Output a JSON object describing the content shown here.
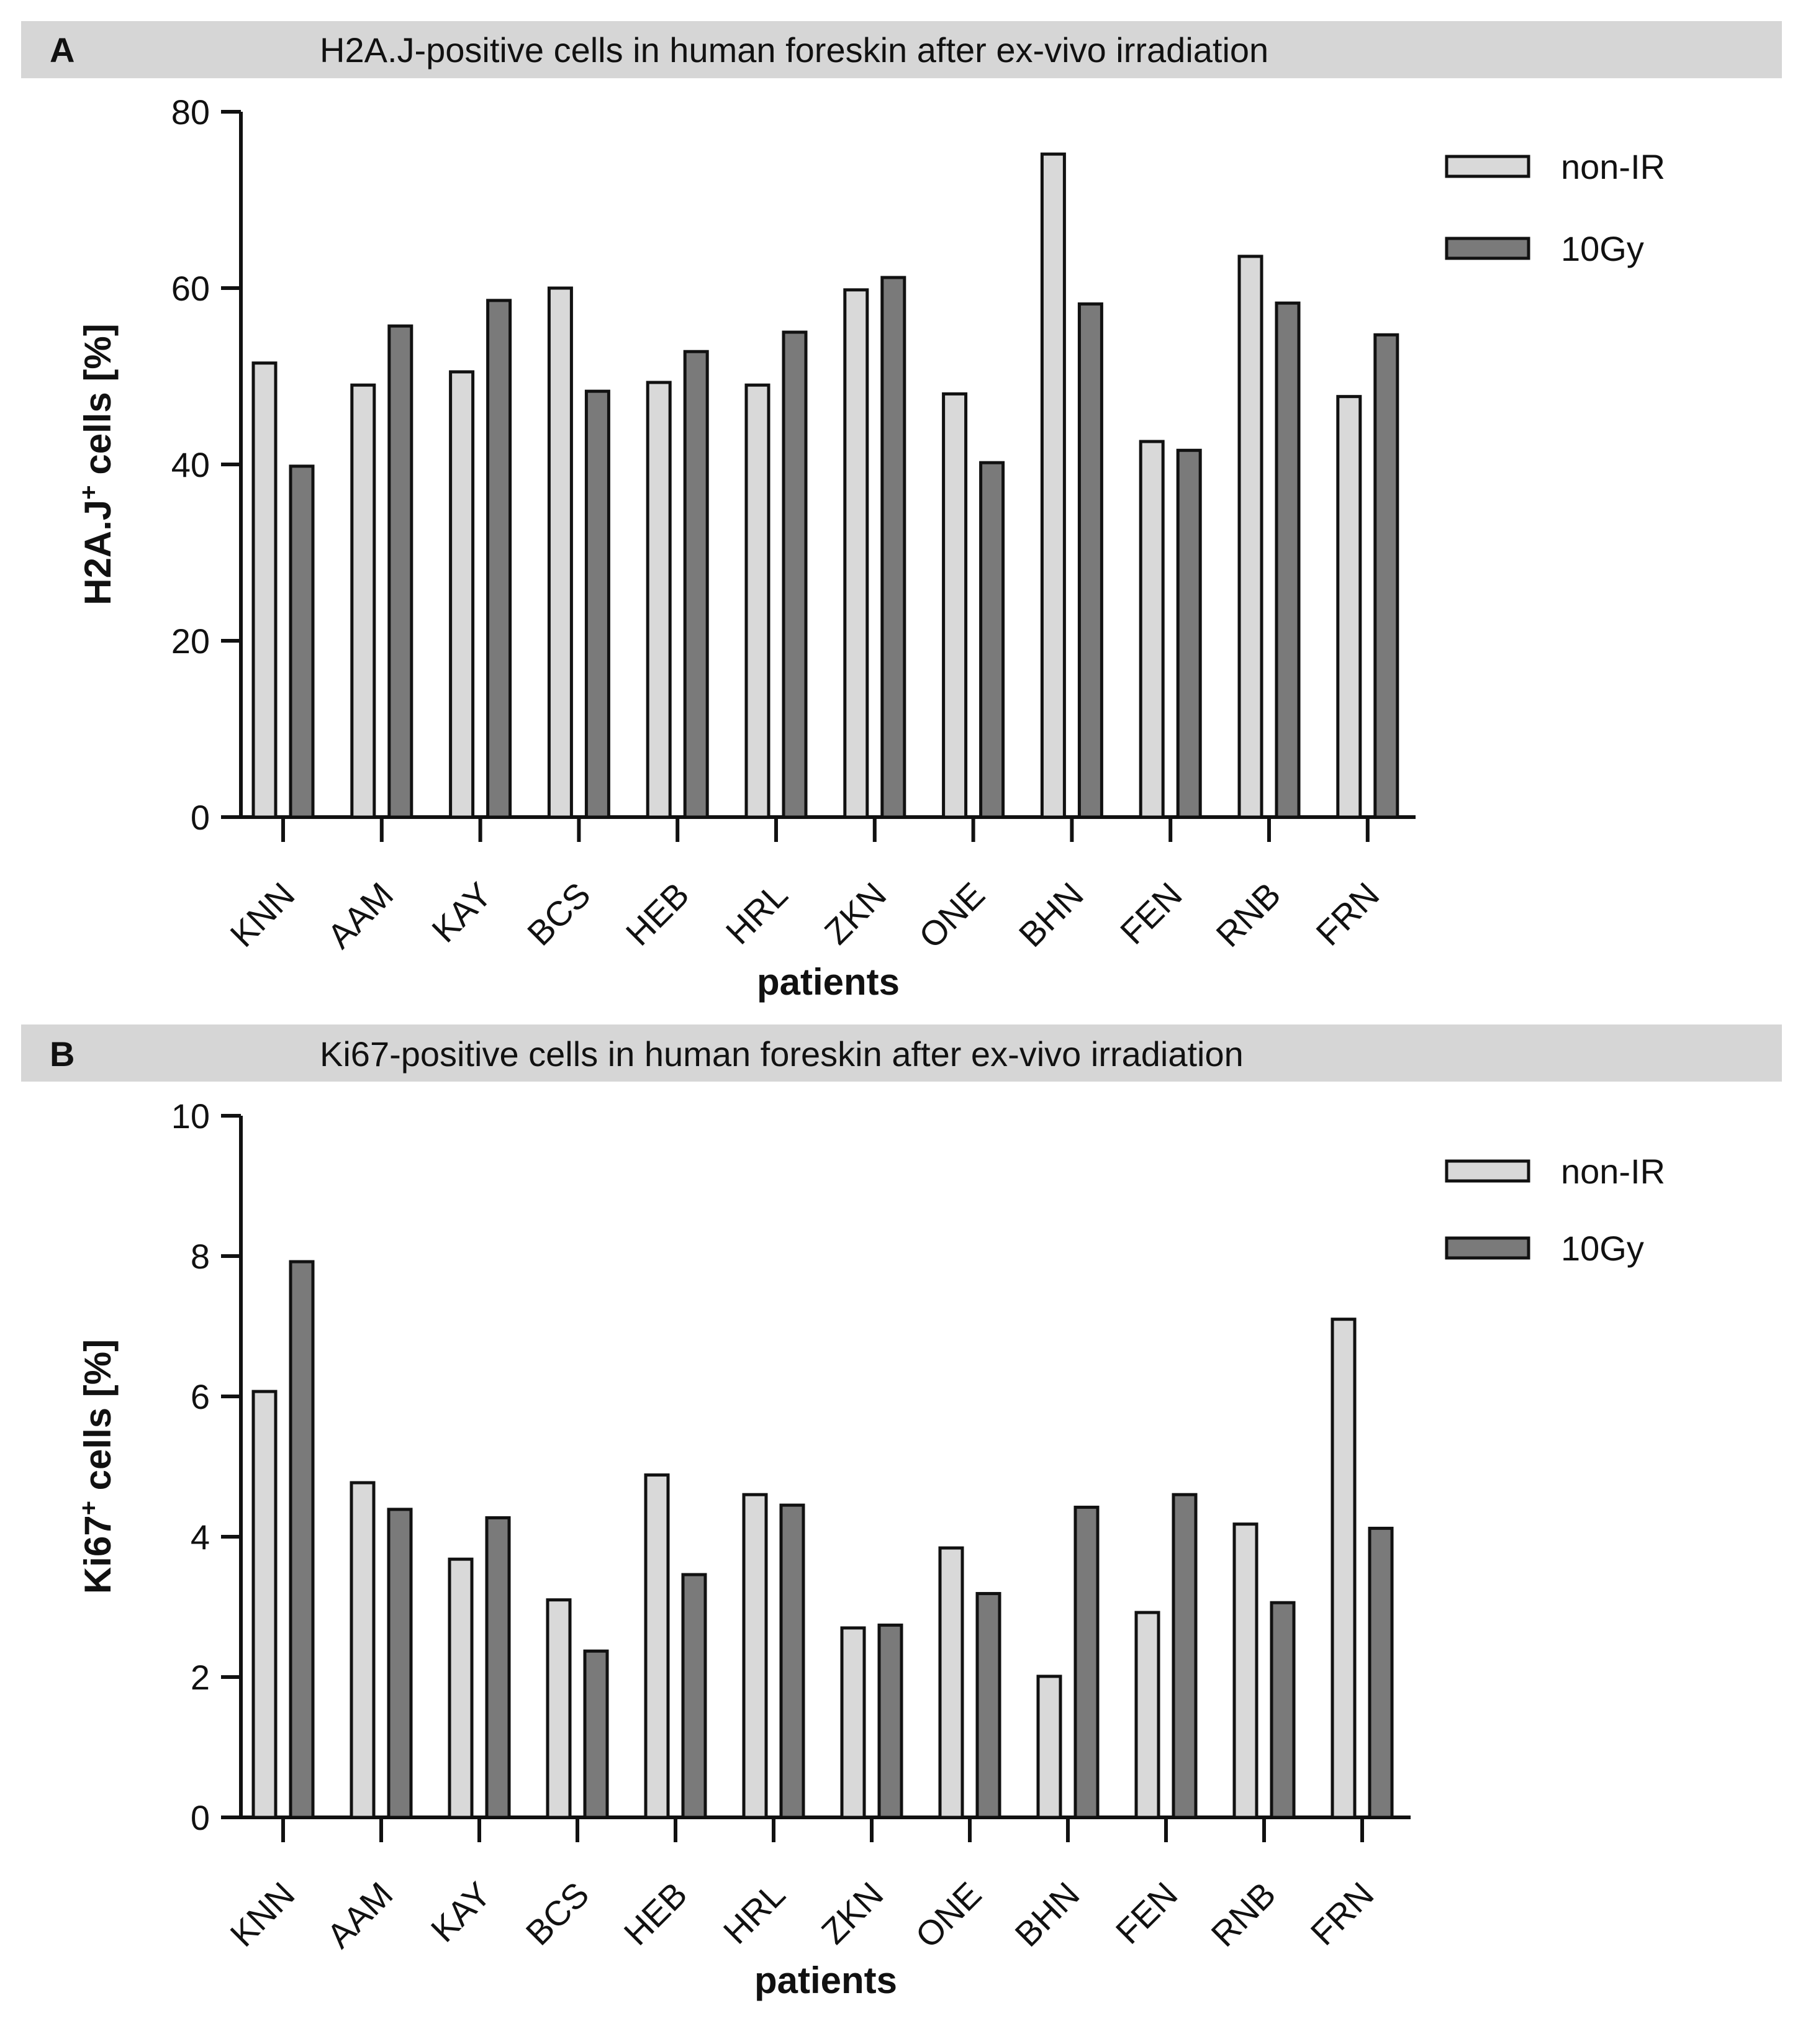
{
  "chart_data": [
    {
      "type": "bar",
      "panel_label": "A",
      "title": "H2A.J-positive cells in human foreskin after ex-vivo irradiation",
      "xlabel": "patients",
      "ylabel_main": "H2A.J",
      "ylabel_sup": "+",
      "ylabel_rest": " cells [%]",
      "ylim": [
        0,
        80
      ],
      "yticks": [
        0,
        20,
        40,
        60,
        80
      ],
      "tick_labels": [
        "0",
        "20",
        "40",
        "60",
        "80"
      ],
      "categories": [
        "KNN",
        "AAM",
        "KAY",
        "BCS",
        "HEB",
        "HRL",
        "ZKN",
        "ONE",
        "BHN",
        "FEN",
        "RNB",
        "FRN"
      ],
      "series": [
        {
          "name": "non-IR",
          "color": "#d9d9d9",
          "values": [
            51.5,
            49,
            50.5,
            60,
            49.3,
            49,
            59.8,
            48,
            75.2,
            42.6,
            63.6,
            47.7
          ]
        },
        {
          "name": "10Gy",
          "color": "#7a7a7a",
          "values": [
            39.8,
            55.7,
            58.6,
            48.3,
            52.8,
            55,
            61.2,
            40.2,
            58.2,
            41.6,
            58.3,
            54.7
          ]
        }
      ],
      "legend_position": "top-right"
    },
    {
      "type": "bar",
      "panel_label": "B",
      "title": "Ki67-positive cells in human foreskin after ex-vivo irradiation",
      "xlabel": "patients",
      "ylabel_main": "Ki67",
      "ylabel_sup": "+",
      "ylabel_rest": " cells [%]",
      "ylim": [
        0,
        10
      ],
      "yticks": [
        0,
        2,
        4,
        6,
        8,
        10
      ],
      "tick_labels": [
        "0",
        "2",
        "4",
        "6",
        "8",
        "10"
      ],
      "categories": [
        "KNN",
        "AAM",
        "KAY",
        "BCS",
        "HEB",
        "HRL",
        "ZKN",
        "ONE",
        "BHN",
        "FEN",
        "RNB",
        "FRN"
      ],
      "series": [
        {
          "name": "non-IR",
          "color": "#d9d9d9",
          "values": [
            6.07,
            4.77,
            3.68,
            3.1,
            4.88,
            4.6,
            2.7,
            3.84,
            2.01,
            2.92,
            4.18,
            7.1
          ]
        },
        {
          "name": "10Gy",
          "color": "#7a7a7a",
          "values": [
            7.92,
            4.39,
            4.27,
            2.37,
            3.46,
            4.45,
            2.74,
            3.19,
            4.42,
            4.6,
            3.06,
            4.12
          ]
        }
      ],
      "legend_position": "top-right"
    }
  ]
}
